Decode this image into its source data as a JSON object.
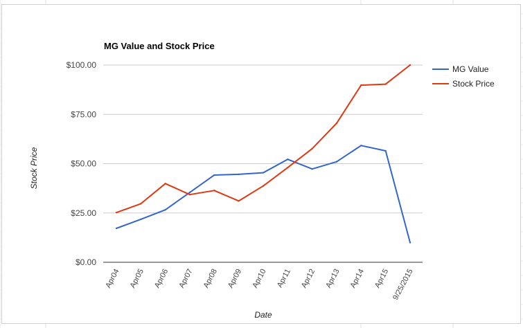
{
  "chart_data": {
    "type": "line",
    "title": "MG Value and Stock Price",
    "xlabel": "Date",
    "ylabel": "Stock Price",
    "categories": [
      "Apr04",
      "Apr05",
      "Apr06",
      "Apr07",
      "Apr08",
      "Apr09",
      "Apr10",
      "Apr11",
      "Apr12",
      "Apr13",
      "Apr14",
      "Apr15",
      "9/25/2015"
    ],
    "series": [
      {
        "name": "MG Value",
        "color": "#3366cc",
        "values": [
          17.2,
          21.8,
          26.6,
          35.4,
          44.2,
          44.6,
          45.4,
          52.2,
          47.3,
          51.0,
          59.2,
          56.5,
          10.0
        ]
      },
      {
        "name": "Stock Price",
        "color": "#dc3912",
        "values": [
          25.2,
          29.7,
          39.9,
          34.3,
          36.4,
          31.1,
          38.7,
          48.0,
          57.6,
          70.5,
          89.8,
          90.3,
          100.0
        ]
      }
    ],
    "ylim": [
      0,
      100
    ],
    "yticks": [
      "$0.00",
      "$25.00",
      "$50.00",
      "$75.00",
      "$100.00"
    ],
    "ytick_values": [
      0,
      25,
      50,
      75,
      100
    ],
    "grid": true,
    "legend_position": "right"
  }
}
